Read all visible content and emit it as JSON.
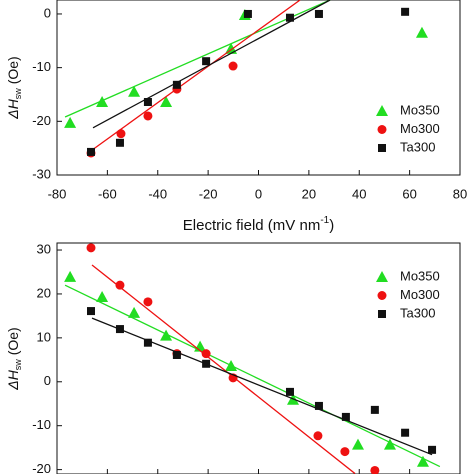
{
  "chart_data": [
    {
      "type": "scatter",
      "x_label": "Electric field (mV nm",
      "x_label_sup": "-1",
      "x_label_end": ")",
      "y_label": "ΔH",
      "y_label_sub": "sw",
      "y_label_end": " (Oe)",
      "xlim": [
        -80,
        80
      ],
      "xticks": [
        -80,
        -60,
        -40,
        -20,
        0,
        20,
        40,
        60,
        80
      ],
      "ylim": [
        -30,
        2.6
      ],
      "yticks": [
        -30,
        -20,
        -10,
        0
      ],
      "series": [
        {
          "name": "Mo350",
          "color": "#22dd22",
          "marker": "triangle",
          "x": [
            -74.8,
            -62.1,
            -49.4,
            -36.7,
            -10.9,
            -5.4,
            64.9
          ],
          "values": [
            -20.3,
            -16.4,
            -14.5,
            -16.4,
            -6.5,
            -0.2,
            -3.5
          ],
          "fit": [
            [
              -76.8,
              -19.2
            ],
            [
              28.4,
              2.6
            ]
          ]
        },
        {
          "name": "Mo300",
          "color": "#ee1111",
          "marker": "circle",
          "x": [
            -66.5,
            -54.6,
            -43.9,
            -32.4,
            -10.1
          ],
          "values": [
            -25.9,
            -22.3,
            -19,
            -14,
            -9.7
          ],
          "fit": [
            [
              -67.7,
              -25.9
            ],
            [
              16.5,
              2.6
            ]
          ]
        },
        {
          "name": "Ta300",
          "color": "#111111",
          "marker": "square",
          "x": [
            -66.5,
            -55,
            -43.9,
            -32.4,
            -20.8,
            -4.2,
            12.5,
            24,
            58.2
          ],
          "values": [
            -25.7,
            -24,
            -16.4,
            -13.2,
            -8.8,
            0,
            -0.7,
            0,
            0.4
          ],
          "fit": [
            [
              -65.7,
              -21.2
            ],
            [
              28.4,
              2.6
            ]
          ]
        }
      ]
    },
    {
      "type": "scatter",
      "y_label": "ΔH",
      "y_label_sub": "sw",
      "y_label_end": " (Oe)",
      "xlim": [
        -80,
        80
      ],
      "xticks": [
        -80,
        -60,
        -40,
        -20,
        0,
        20,
        40,
        60,
        80
      ],
      "ylim": [
        -21,
        31.6
      ],
      "yticks": [
        -20,
        -10,
        0,
        10,
        20,
        30
      ],
      "series": [
        {
          "name": "Mo350",
          "color": "#22dd22",
          "marker": "triangle",
          "x": [
            -74.8,
            -62.1,
            -49.4,
            -36.7,
            -23.2,
            -10.9,
            13.7,
            39.5,
            52.2,
            65.3
          ],
          "values": [
            23.9,
            19.3,
            15.7,
            10.5,
            8,
            3.6,
            -4.1,
            -14.3,
            -14.3,
            -18.2
          ],
          "fit": [
            [
              -76.8,
              22
            ],
            [
              72,
              -19.3
            ]
          ]
        },
        {
          "name": "Mo300",
          "color": "#ee1111",
          "marker": "circle",
          "x": [
            -66.5,
            -55,
            -43.9,
            -32.4,
            -20.8,
            -10.1,
            23.6,
            34.3,
            46.2
          ],
          "values": [
            30.5,
            22,
            18.2,
            6.4,
            6.4,
            0.9,
            -12.3,
            -15.9,
            -20.2
          ],
          "fit": [
            [
              -66.1,
              26.6
            ],
            [
              38.3,
              -20.9
            ]
          ]
        },
        {
          "name": "Ta300",
          "color": "#111111",
          "marker": "square",
          "x": [
            -66.5,
            -55,
            -43.9,
            -32.4,
            -20.8,
            12.5,
            24,
            34.7,
            46.2,
            58.2,
            68.9
          ],
          "values": [
            16.1,
            12,
            8.9,
            6.1,
            4.1,
            -2.3,
            -5.5,
            -8,
            -6.4,
            -11.6,
            -15.5
          ],
          "fit": [
            [
              -66.1,
              14.5
            ],
            [
              68.9,
              -16.6
            ]
          ]
        }
      ]
    }
  ]
}
